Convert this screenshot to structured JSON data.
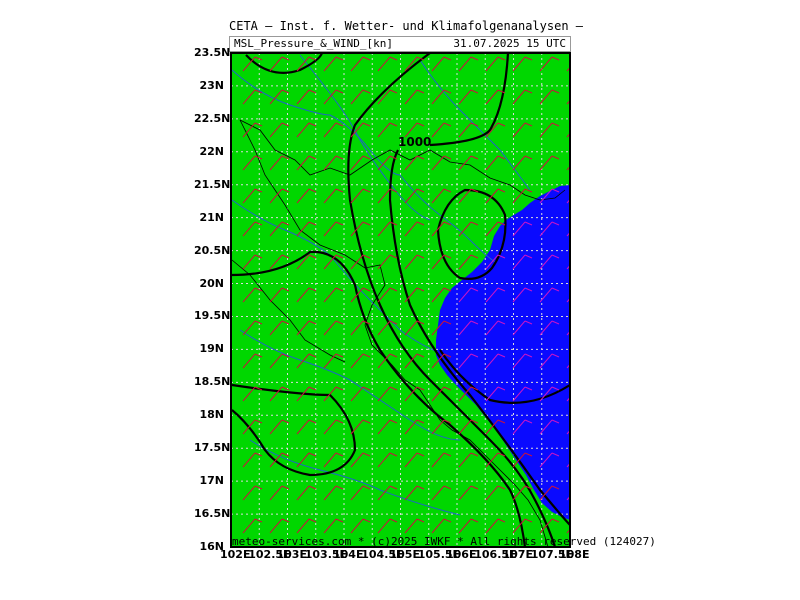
{
  "header": {
    "title": "CETA — Inst. f. Wetter- und Klimafolgenanalysen —",
    "subtitle_left": "MSL_Pressure_&_WIND_[kn]",
    "subtitle_right": "31.07.2025 15 UTC"
  },
  "map": {
    "land_color": "#00d700",
    "sea_color": "#0a0aff",
    "isobar_color": "#000000",
    "river_color": "#1e64c8",
    "border_color": "#000000",
    "wind_barb_land_color": "#c8143c",
    "wind_barb_sea_color": "#c814c8",
    "grid_color": "#dcdcdc",
    "isobar_label": "1000",
    "lat_labels": [
      "23.5N",
      "23N",
      "22.5N",
      "22N",
      "21.5N",
      "21N",
      "20.5N",
      "20N",
      "19.5N",
      "19N",
      "18.5N",
      "18N",
      "17.5N",
      "17N",
      "16.5N",
      "16N"
    ],
    "lon_labels": [
      "102E",
      "102.5E",
      "103E",
      "103.5E",
      "104E",
      "104.5E",
      "105E",
      "105.5E",
      "106E",
      "106.5E",
      "107E",
      "107.5E",
      "108E"
    ]
  },
  "footer": {
    "credit": "meteo-services.com * (c)2025 IWKF * All rights reserved (124027)"
  }
}
